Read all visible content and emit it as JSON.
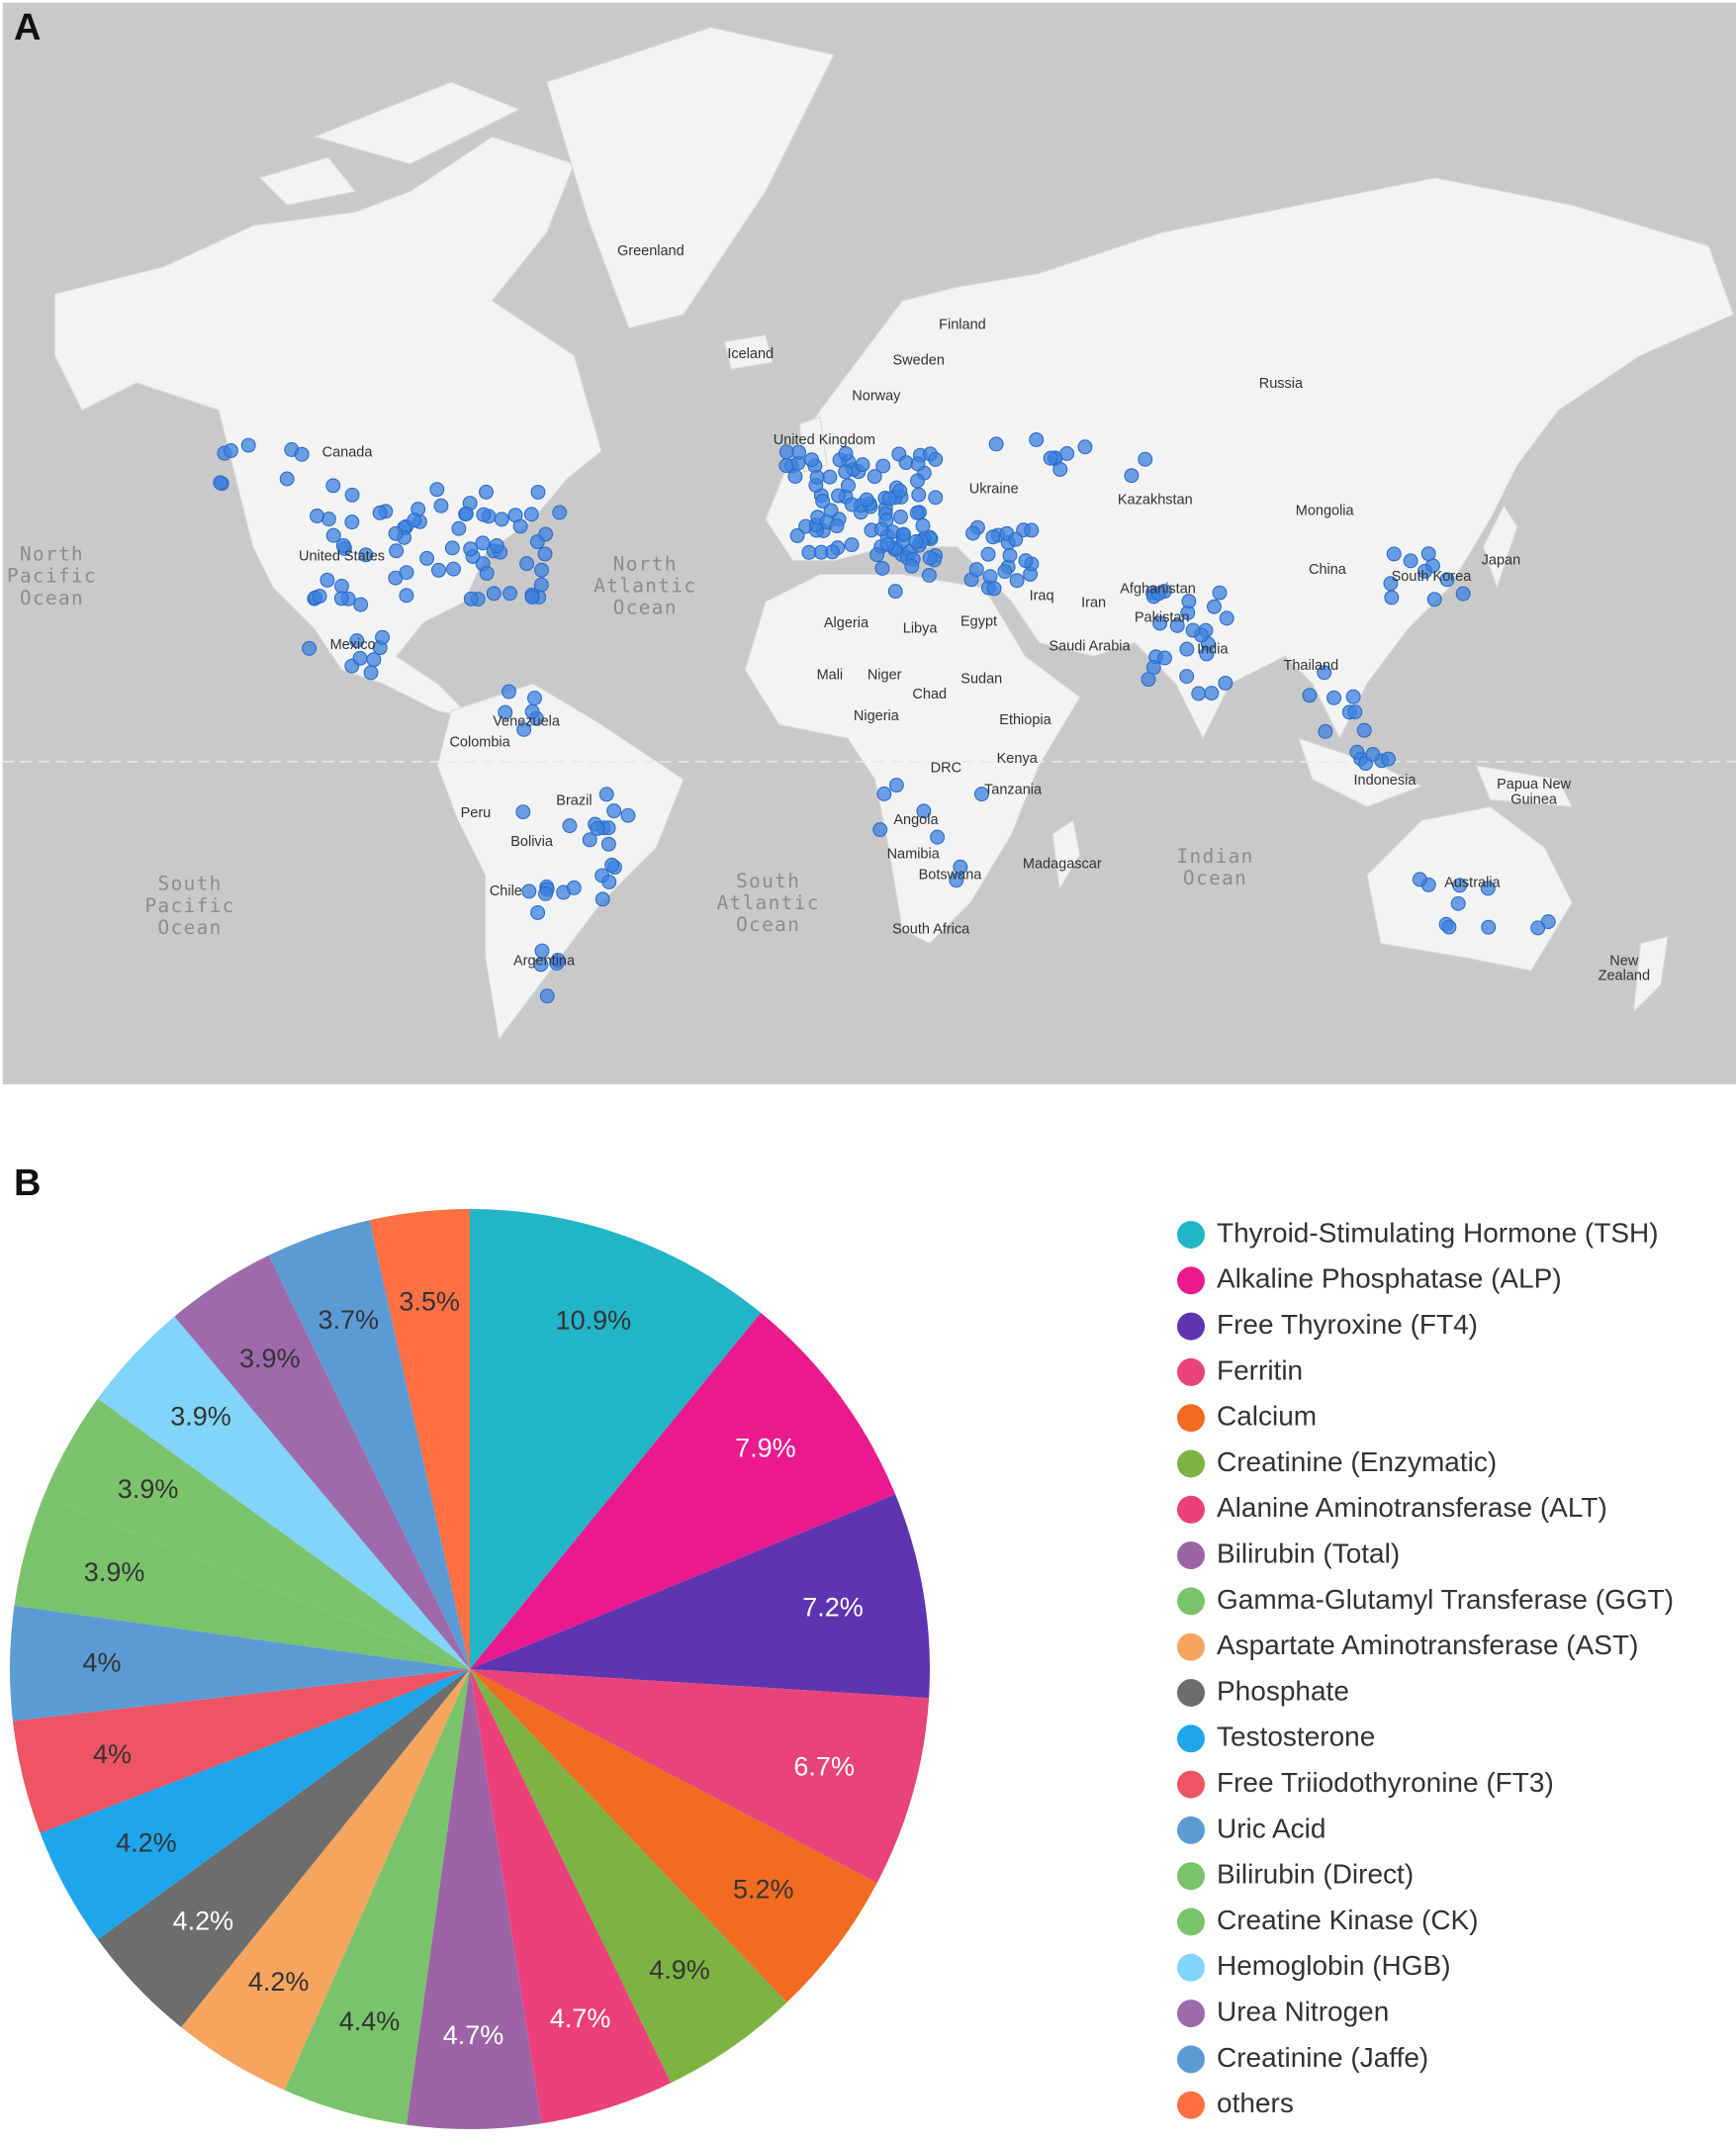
{
  "map": {
    "panel_label": "A",
    "labels": [
      {
        "lines": [
          "Greenland"
        ]
      },
      {
        "lines": [
          "Iceland"
        ]
      },
      {
        "lines": [
          "Finland"
        ]
      },
      {
        "lines": [
          "Sweden"
        ]
      },
      {
        "lines": [
          "Norway"
        ]
      },
      {
        "lines": [
          "Russia"
        ]
      },
      {
        "lines": [
          "Canada"
        ]
      },
      {
        "lines": [
          "United Kingdom"
        ]
      },
      {
        "lines": [
          "Ukraine"
        ]
      },
      {
        "lines": [
          "Kazakhstan"
        ]
      },
      {
        "lines": [
          "Mongolia"
        ]
      },
      {
        "lines": [
          "North",
          "Pacific",
          "Ocean"
        ]
      },
      {
        "lines": [
          "North",
          "Atlantic",
          "Ocean"
        ]
      },
      {
        "lines": [
          "Japan"
        ]
      },
      {
        "lines": [
          "China"
        ]
      },
      {
        "lines": [
          "South Korea"
        ]
      },
      {
        "lines": [
          "Afghanistan"
        ]
      },
      {
        "lines": [
          "Iraq"
        ]
      },
      {
        "lines": [
          "Iran"
        ]
      },
      {
        "lines": [
          "Algeria"
        ]
      },
      {
        "lines": [
          "Libya"
        ]
      },
      {
        "lines": [
          "Egypt"
        ]
      },
      {
        "lines": [
          "Pakistan"
        ]
      },
      {
        "lines": [
          "India"
        ]
      },
      {
        "lines": [
          "Saudi Arabia"
        ]
      },
      {
        "lines": [
          "Mexico"
        ]
      },
      {
        "lines": [
          "United States"
        ]
      },
      {
        "lines": [
          "Mali"
        ]
      },
      {
        "lines": [
          "Niger"
        ]
      },
      {
        "lines": [
          "Sudan"
        ]
      },
      {
        "lines": [
          "Thailand"
        ]
      },
      {
        "lines": [
          "Chad"
        ]
      },
      {
        "lines": [
          "Nigeria"
        ]
      },
      {
        "lines": [
          "Ethiopia"
        ]
      },
      {
        "lines": [
          "Venezuela"
        ]
      },
      {
        "lines": [
          "Colombia"
        ]
      },
      {
        "lines": [
          "DRC"
        ]
      },
      {
        "lines": [
          "Kenya"
        ]
      },
      {
        "lines": [
          "Indonesia"
        ]
      },
      {
        "lines": [
          "Papua New",
          "Guinea"
        ]
      },
      {
        "lines": [
          "Tanzania"
        ]
      },
      {
        "lines": [
          "Brazil"
        ]
      },
      {
        "lines": [
          "Peru"
        ]
      },
      {
        "lines": [
          "Bolivia"
        ]
      },
      {
        "lines": [
          "Angola"
        ]
      },
      {
        "lines": [
          "South",
          "Atlantic",
          "Ocean"
        ]
      },
      {
        "lines": [
          "South",
          "Pacific",
          "Ocean"
        ]
      },
      {
        "lines": [
          "Indian",
          "Ocean"
        ]
      },
      {
        "lines": [
          "Namibia"
        ]
      },
      {
        "lines": [
          "Madagascar"
        ]
      },
      {
        "lines": [
          "Australia"
        ]
      },
      {
        "lines": [
          "Botswana"
        ]
      },
      {
        "lines": [
          "Chile"
        ]
      },
      {
        "lines": [
          "South Africa"
        ]
      },
      {
        "lines": [
          "Argentina"
        ]
      },
      {
        "lines": [
          "New",
          "Zealand"
        ]
      }
    ]
  },
  "chart_data": {
    "type": "pie",
    "panel_label": "B",
    "categories": [
      "Thyroid-Stimulating Hormone (TSH)",
      "Alkaline Phosphatase (ALP)",
      "Free Thyroxine (FT4)",
      "Ferritin",
      "Calcium",
      "Creatinine (Enzymatic)",
      "Alanine Aminotransferase (ALT)",
      "Bilirubin (Total)",
      "Gamma-Glutamyl Transferase (GGT)",
      "Aspartate Aminotransferase (AST)",
      "Phosphate",
      "Testosterone",
      "Free Triiodothyronine (FT3)",
      "Uric Acid",
      "Bilirubin (Direct)",
      "Creatine Kinase (CK)",
      "Hemoglobin (HGB)",
      "Urea Nitrogen",
      "Creatinine (Jaffe)",
      "others"
    ],
    "values": [
      10.9,
      7.9,
      7.2,
      6.7,
      5.2,
      4.9,
      4.7,
      4.7,
      4.4,
      4.2,
      4.2,
      4.2,
      4,
      4,
      3.9,
      3.9,
      3.9,
      3.9,
      3.7,
      3.5
    ],
    "value_labels": [
      "10.9%",
      "7.9%",
      "7.2%",
      "6.7%",
      "5.2%",
      "4.9%",
      "4.7%",
      "4.7%",
      "4.4%",
      "4.2%",
      "4.2%",
      "4.2%",
      "4%",
      "4%",
      "3.9%",
      "3.9%",
      "3.9%",
      "3.9%",
      "3.7%",
      "3.5%"
    ],
    "colors": [
      "#22b5c8",
      "#ea1a8e",
      "#5e35b1",
      "#e8437a",
      "#f26b21",
      "#7cb342",
      "#ec407a",
      "#9c64a6",
      "#79c36a",
      "#f6a55f",
      "#6d6d6d",
      "#1ea6ec",
      "#ec5561",
      "#5b9bd5",
      "#7ac36a",
      "#7cc46c",
      "#81d4fa",
      "#9e6aac",
      "#5b9bd5",
      "#ff7043"
    ],
    "legend": "right"
  }
}
